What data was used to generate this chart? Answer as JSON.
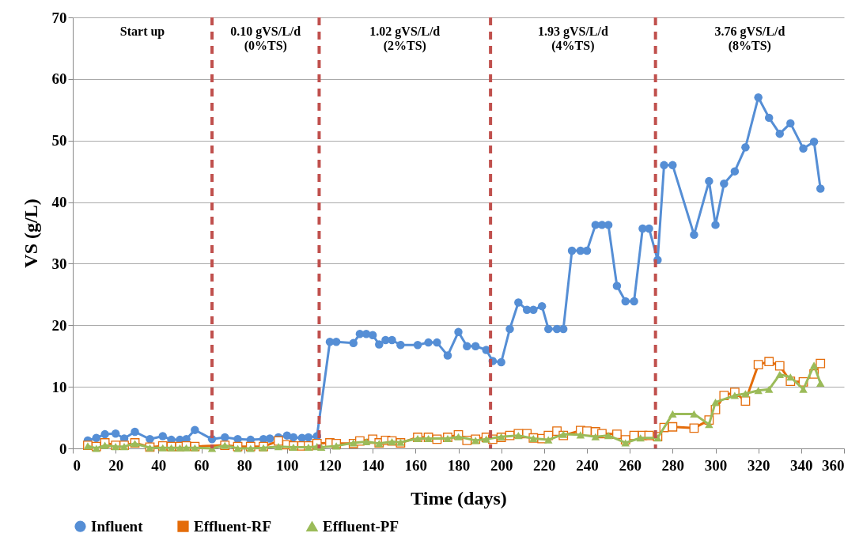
{
  "chart_data": {
    "type": "line",
    "xlabel": "Time (days)",
    "ylabel": "VS (g/L)",
    "xlim": [
      0,
      360
    ],
    "ylim": [
      0,
      70
    ],
    "xticks": [
      0,
      20,
      40,
      60,
      80,
      100,
      120,
      140,
      160,
      180,
      200,
      220,
      240,
      260,
      280,
      300,
      320,
      340,
      360
    ],
    "yticks": [
      0,
      10,
      20,
      30,
      40,
      50,
      60,
      70
    ],
    "grid": "y",
    "legend": "bottom",
    "ref_lines": [
      {
        "axis": "x",
        "value": 65,
        "color": "#c0504d",
        "line_style": "dashed"
      },
      {
        "axis": "x",
        "value": 115,
        "color": "#c0504d",
        "line_style": "dashed"
      },
      {
        "axis": "x",
        "value": 195,
        "color": "#c0504d",
        "line_style": "dashed"
      },
      {
        "axis": "x",
        "value": 272,
        "color": "#c0504d",
        "line_style": "dashed"
      }
    ],
    "annotations": [
      "Start up",
      "0.10 gVS/L/d\n(0%TS)",
      "1.02 gVS/L/d\n(2%TS)",
      "1.93 gVS/L/d\n(4%TS)",
      "3.76 gVS/L/d\n(8%TS)"
    ],
    "series": [
      {
        "name": "Influent",
        "color": "#558ed5",
        "marker": "circle",
        "x": [
          7,
          11,
          15,
          20,
          24,
          29,
          36,
          42,
          46,
          50,
          53,
          57,
          65,
          71,
          77,
          83,
          89,
          92,
          96,
          100,
          103,
          107,
          110,
          114,
          120,
          123,
          131,
          134,
          137,
          140,
          143,
          146,
          149,
          153,
          161,
          166,
          170,
          175,
          180,
          184,
          188,
          193,
          196,
          200,
          204,
          208,
          212,
          215,
          219,
          222,
          226,
          229,
          233,
          237,
          240,
          244,
          247,
          250,
          254,
          258,
          262,
          266,
          269,
          273,
          276,
          280,
          290,
          297,
          300,
          304,
          309,
          314,
          320,
          325,
          330,
          335,
          341,
          346,
          349
        ],
        "values": [
          1.3,
          1.7,
          2.3,
          2.4,
          1.6,
          2.7,
          1.5,
          2.0,
          1.4,
          1.4,
          1.5,
          3.0,
          1.5,
          1.8,
          1.5,
          1.4,
          1.5,
          1.6,
          1.8,
          2.1,
          1.8,
          1.7,
          1.8,
          2.0,
          17.3,
          17.3,
          17.1,
          18.6,
          18.6,
          18.4,
          16.9,
          17.6,
          17.6,
          16.8,
          16.8,
          17.2,
          17.2,
          15.1,
          18.9,
          16.6,
          16.6,
          16.0,
          14.2,
          14.0,
          19.4,
          23.7,
          22.5,
          22.5,
          23.1,
          19.4,
          19.4,
          19.4,
          32.1,
          32.1,
          32.1,
          36.3,
          36.3,
          36.3,
          26.4,
          23.9,
          23.9,
          35.7,
          35.7,
          30.6,
          46.0,
          46.0,
          34.7,
          43.4,
          36.3,
          43.0,
          45.0,
          48.9,
          57.0,
          53.7,
          51.1,
          52.8,
          48.7,
          49.8,
          42.2
        ]
      },
      {
        "name": "Effluent-RF",
        "color": "#e46c0a",
        "marker": "square",
        "x": [
          7,
          11,
          15,
          20,
          24,
          29,
          36,
          42,
          46,
          50,
          53,
          57,
          71,
          77,
          83,
          89,
          96,
          100,
          103,
          107,
          110,
          114,
          120,
          123,
          131,
          134,
          140,
          143,
          146,
          149,
          153,
          161,
          166,
          170,
          175,
          180,
          184,
          188,
          193,
          196,
          200,
          204,
          208,
          212,
          215,
          219,
          222,
          226,
          229,
          237,
          240,
          244,
          247,
          254,
          258,
          262,
          266,
          269,
          273,
          276,
          280,
          290,
          297,
          300,
          304,
          309,
          314,
          320,
          325,
          330,
          335,
          341,
          346,
          349
        ],
        "values": [
          0.5,
          0.3,
          0.9,
          0.5,
          0.5,
          0.9,
          0.2,
          0.4,
          0.3,
          0.3,
          0.4,
          0.3,
          0.5,
          0.3,
          0.3,
          0.3,
          1.2,
          0.6,
          0.4,
          0.4,
          0.4,
          0.8,
          0.9,
          0.8,
          0.8,
          1.2,
          1.5,
          0.9,
          1.3,
          1.2,
          0.9,
          1.8,
          1.8,
          1.5,
          1.8,
          2.2,
          1.3,
          1.5,
          1.8,
          1.5,
          1.8,
          2.1,
          2.4,
          2.4,
          1.7,
          1.6,
          2.1,
          2.8,
          2.1,
          2.9,
          2.8,
          2.7,
          2.4,
          2.3,
          1.4,
          2.1,
          2.1,
          2.1,
          1.9,
          3.4,
          3.5,
          3.3,
          4.6,
          6.3,
          8.6,
          9.1,
          7.7,
          13.6,
          14.1,
          13.4,
          10.9,
          10.8,
          12.1,
          13.8
        ]
      },
      {
        "name": "Effluent-PF",
        "color": "#9bbb59",
        "marker": "triangle",
        "x": [
          7,
          11,
          15,
          20,
          24,
          29,
          36,
          42,
          46,
          50,
          53,
          57,
          65,
          71,
          77,
          83,
          89,
          96,
          103,
          110,
          114,
          116,
          123,
          131,
          137,
          143,
          149,
          153,
          161,
          166,
          175,
          180,
          188,
          193,
          200,
          208,
          215,
          222,
          229,
          237,
          244,
          250,
          258,
          265,
          273,
          280,
          290,
          297,
          300,
          309,
          314,
          320,
          325,
          330,
          335,
          341,
          346,
          349
        ],
        "values": [
          0.4,
          0.0,
          0.5,
          0.3,
          0.3,
          0.8,
          0.1,
          0.1,
          0.1,
          0.1,
          0.1,
          0.1,
          0.0,
          0.5,
          0.0,
          0.0,
          0.1,
          0.3,
          0.2,
          0.2,
          0.3,
          0.2,
          0.4,
          0.9,
          1.1,
          0.8,
          1.1,
          1.0,
          1.6,
          1.6,
          1.6,
          1.9,
          1.3,
          1.5,
          1.9,
          2.1,
          1.6,
          1.4,
          2.3,
          2.2,
          1.9,
          2.1,
          0.9,
          1.7,
          1.7,
          5.6,
          5.6,
          3.9,
          7.5,
          8.6,
          8.9,
          9.4,
          9.6,
          12.0,
          11.6,
          9.6,
          13.5,
          10.6
        ]
      }
    ]
  }
}
